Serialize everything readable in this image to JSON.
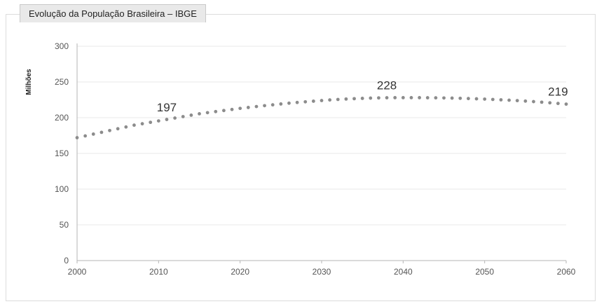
{
  "chart_data": {
    "type": "line",
    "title": "Evolução da População Brasileira – IBGE",
    "ylabel": "Milhões",
    "xlabel": "",
    "xlim": [
      2000,
      2060
    ],
    "ylim": [
      0,
      300
    ],
    "x_ticks": [
      "2000",
      "2010",
      "2020",
      "2030",
      "2040",
      "2050",
      "2060"
    ],
    "y_ticks": [
      "0",
      "50",
      "100",
      "150",
      "200",
      "250",
      "300"
    ],
    "grid": true,
    "marker": "dot",
    "colors": {
      "series": "#8c8c8c",
      "grid": "#e8e8e8",
      "axis": "#b5b5b5",
      "text": "#555555"
    },
    "x": [
      2000,
      2001,
      2002,
      2003,
      2004,
      2005,
      2006,
      2007,
      2008,
      2009,
      2010,
      2011,
      2012,
      2013,
      2014,
      2015,
      2016,
      2017,
      2018,
      2019,
      2020,
      2021,
      2022,
      2023,
      2024,
      2025,
      2026,
      2027,
      2028,
      2029,
      2030,
      2031,
      2032,
      2033,
      2034,
      2035,
      2036,
      2037,
      2038,
      2039,
      2040,
      2041,
      2042,
      2043,
      2044,
      2045,
      2046,
      2047,
      2048,
      2049,
      2050,
      2051,
      2052,
      2053,
      2054,
      2055,
      2056,
      2057,
      2058,
      2059,
      2060
    ],
    "series": [
      {
        "values": [
          172,
          174.5,
          177,
          179.5,
          182,
          184.5,
          187,
          189.5,
          191.5,
          193.5,
          195.5,
          197.5,
          199.5,
          201.5,
          203.5,
          205.5,
          207,
          208.5,
          210,
          211.5,
          213,
          214.3,
          215.6,
          216.8,
          218,
          219.2,
          220.3,
          221.3,
          222.2,
          223.1,
          224,
          224.8,
          225.5,
          226.1,
          226.6,
          227,
          227.4,
          227.7,
          227.9,
          228,
          228,
          228,
          228,
          227.9,
          227.8,
          227.6,
          227.4,
          227.1,
          226.8,
          226.4,
          226,
          225.5,
          225,
          224.5,
          223.9,
          223.2,
          222.5,
          221.7,
          220.8,
          219.9,
          219
        ]
      }
    ],
    "annotations": [
      {
        "x": 2011,
        "y": 197,
        "text": "197"
      },
      {
        "x": 2038,
        "y": 228,
        "text": "228"
      },
      {
        "x": 2059,
        "y": 219,
        "text": "219"
      }
    ]
  }
}
